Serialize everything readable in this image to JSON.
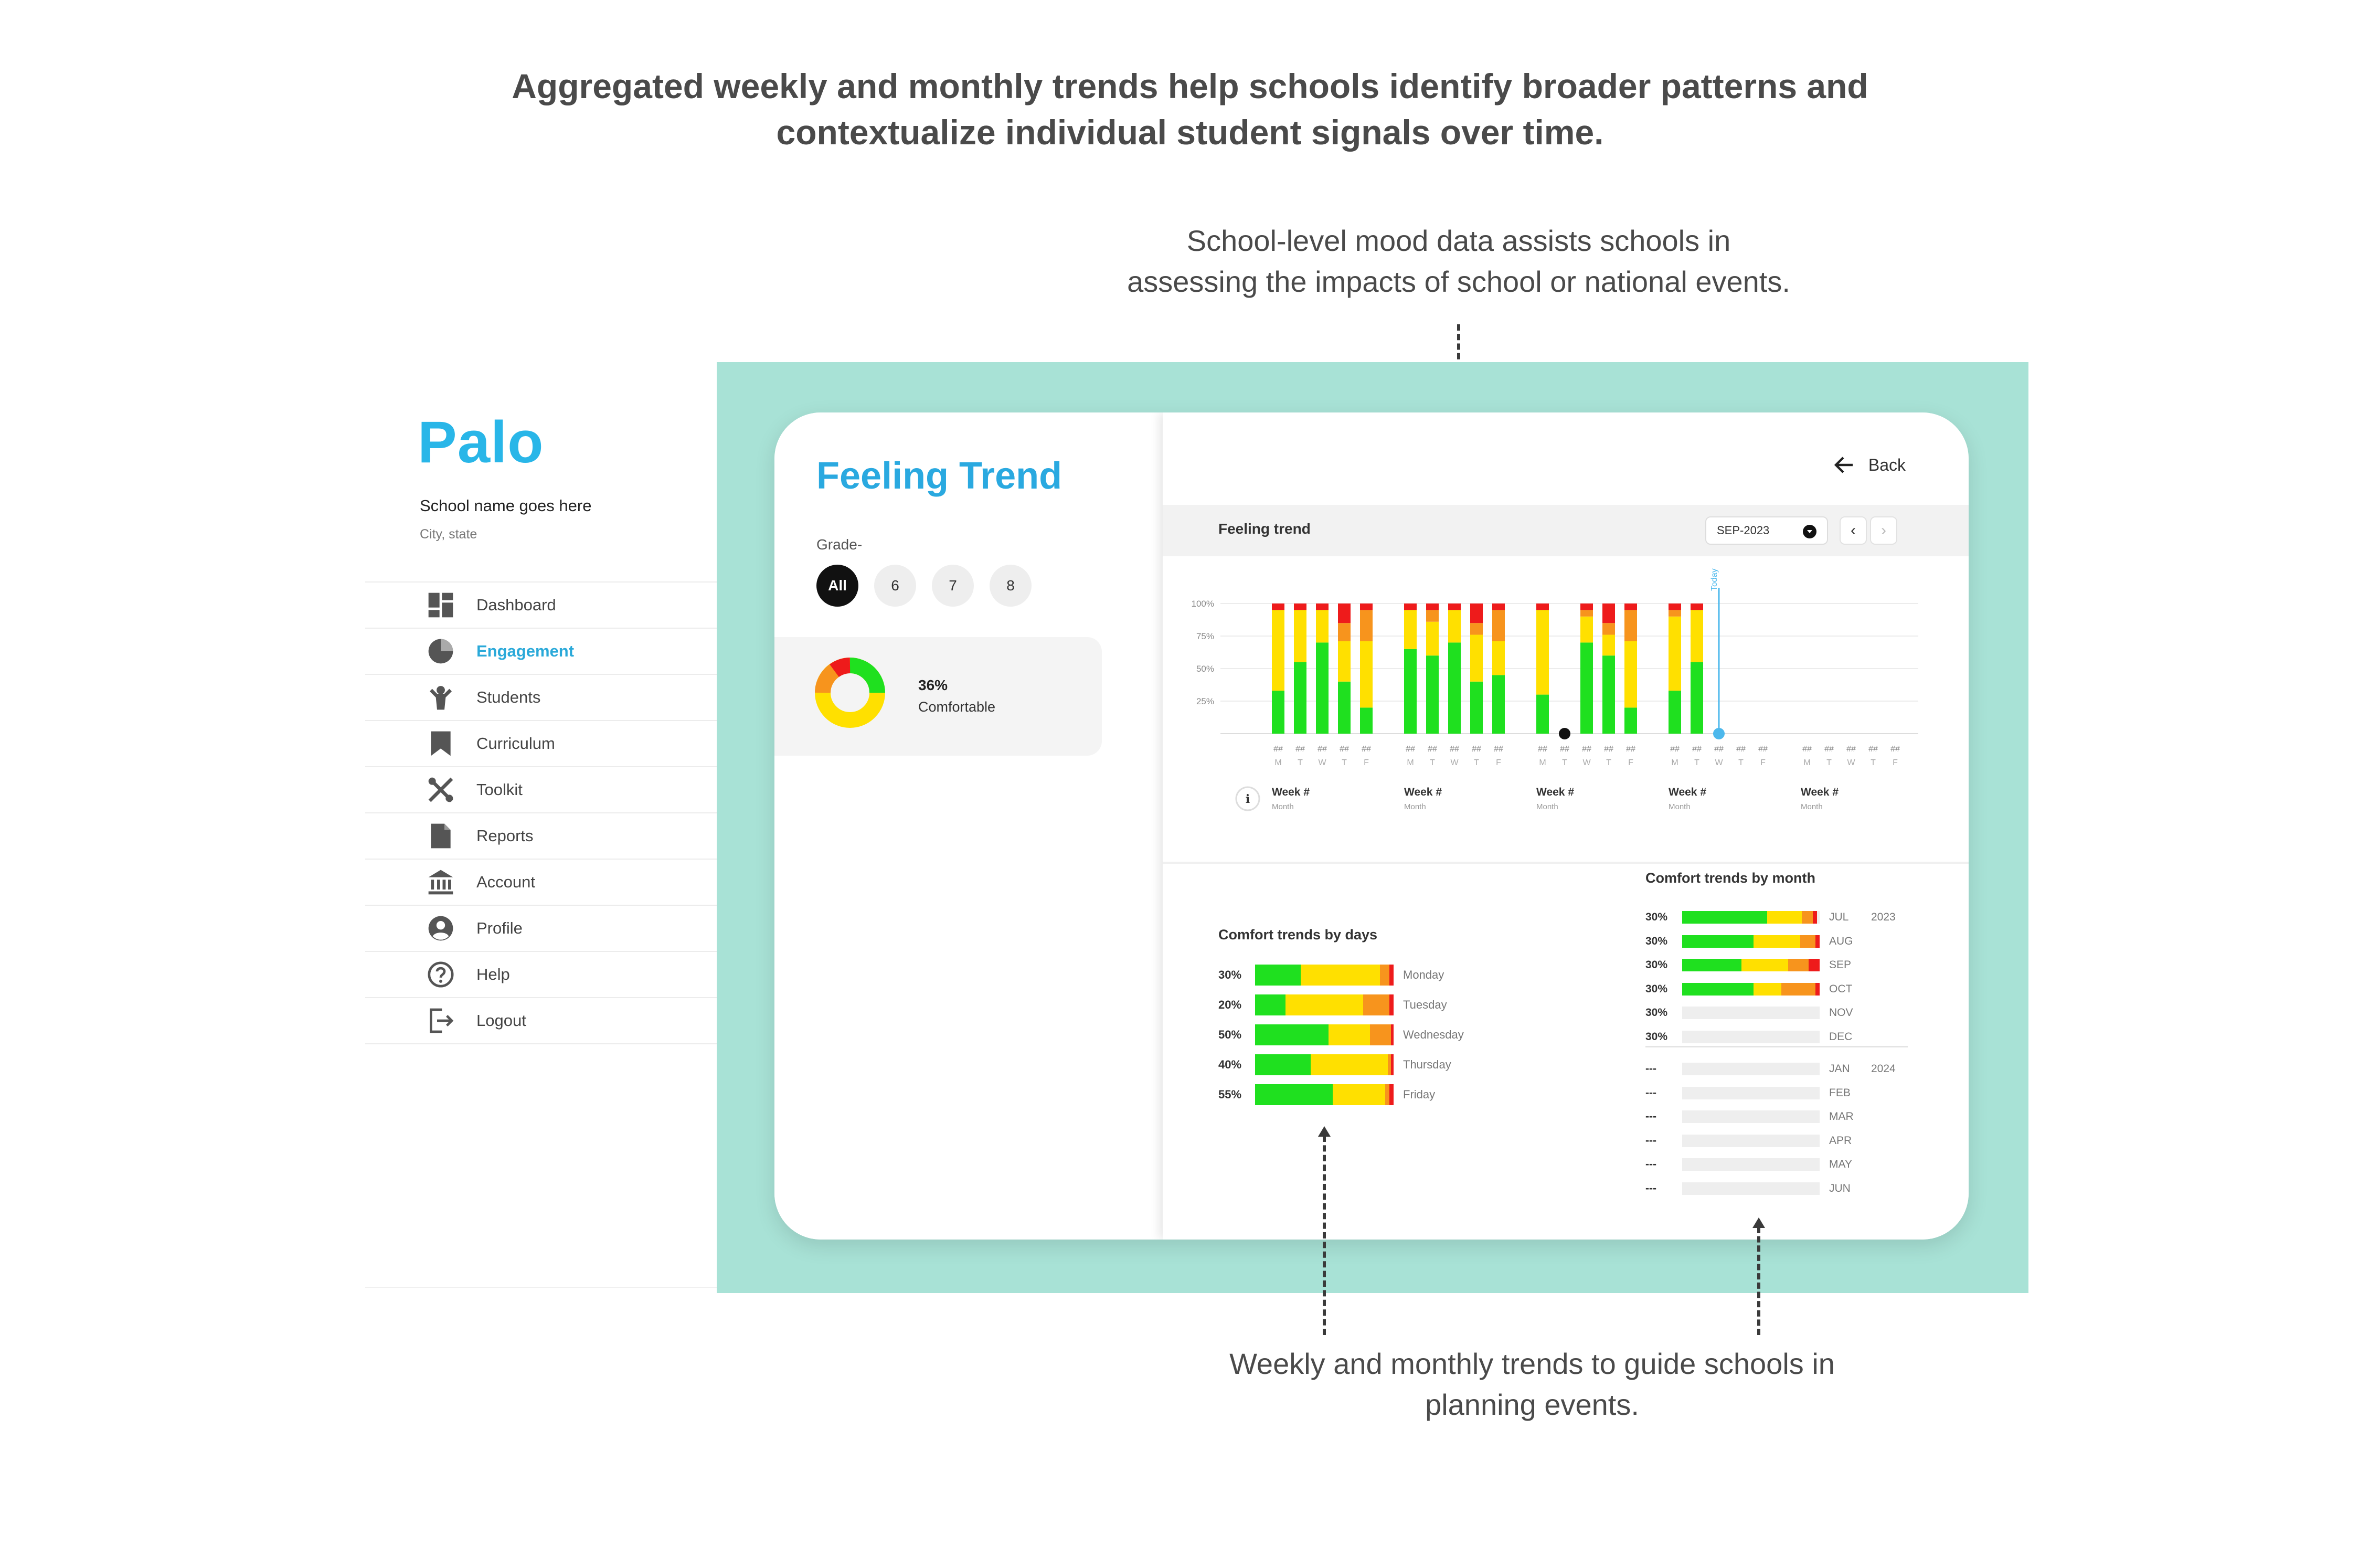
{
  "headline": {
    "line1": "Aggregated weekly and monthly trends help schools identify broader patterns and",
    "line2": "contextualize individual student signals over time."
  },
  "annotation_top": {
    "line1": "School-level mood data assists schools in",
    "line2": "assessing the impacts of school or national events."
  },
  "annotation_bottom": {
    "line1": "Weekly and monthly trends to guide schools in",
    "line2": "planning events."
  },
  "sidebar": {
    "logo": "Palo",
    "school_name": "School name goes here",
    "city": "City, state",
    "items": [
      {
        "label": "Dashboard",
        "icon": "dashboard-icon",
        "active": false
      },
      {
        "label": "Engagement",
        "icon": "pie-chart-icon",
        "active": true
      },
      {
        "label": "Students",
        "icon": "student-icon",
        "active": false
      },
      {
        "label": "Curriculum",
        "icon": "bookmark-icon",
        "active": false
      },
      {
        "label": "Toolkit",
        "icon": "tools-icon",
        "active": false
      },
      {
        "label": "Reports",
        "icon": "document-icon",
        "active": false
      },
      {
        "label": "Account",
        "icon": "bank-icon",
        "active": false
      },
      {
        "label": "Profile",
        "icon": "profile-icon",
        "active": false
      },
      {
        "label": "Help",
        "icon": "help-icon",
        "active": false
      },
      {
        "label": "Logout",
        "icon": "logout-icon",
        "active": false
      }
    ]
  },
  "colors": {
    "teal_frame": "#a8e2d6",
    "accent_blue": "#2aa9e0",
    "green": "#1fe01f",
    "yellow": "#ffe000",
    "orange": "#f7941d",
    "red": "#ee1b1b",
    "today_line": "#4db8ec"
  },
  "feeling_panel": {
    "title": "Feeling Trend",
    "grade_label": "Grade-",
    "grades": [
      "All",
      "6",
      "7",
      "8"
    ],
    "selected_grade": "All",
    "mood_percent": "36%",
    "mood_label": "Comfortable"
  },
  "right_panel": {
    "back_label": "Back",
    "section_title": "Feeling trend",
    "month_select": "SEP-2023",
    "prev_label": "‹",
    "next_label": "›"
  },
  "chart_data": [
    {
      "type": "bar",
      "stacked": true,
      "title": "Feeling trend",
      "y_ticks": [
        "100%",
        "75%",
        "50%",
        "25%"
      ],
      "ylim": [
        0,
        100
      ],
      "today_label": "Today",
      "day_labels": [
        "M",
        "T",
        "W",
        "T",
        "F"
      ],
      "bar_value_label": "##",
      "weeks": [
        {
          "label": "Week #",
          "sublabel": "Month",
          "days": [
            {
              "green": 33,
              "yellow": 62,
              "orange": 0,
              "red": 5
            },
            {
              "green": 55,
              "yellow": 40,
              "orange": 0,
              "red": 5
            },
            {
              "green": 70,
              "yellow": 25,
              "orange": 0,
              "red": 5
            },
            {
              "green": 40,
              "yellow": 31,
              "orange": 14,
              "red": 15
            },
            {
              "green": 20,
              "yellow": 51,
              "orange": 24,
              "red": 5
            }
          ]
        },
        {
          "label": "Week #",
          "sublabel": "Month",
          "days": [
            {
              "green": 65,
              "yellow": 30,
              "orange": 0,
              "red": 5
            },
            {
              "green": 60,
              "yellow": 26,
              "orange": 9,
              "red": 5
            },
            {
              "green": 70,
              "yellow": 25,
              "orange": 0,
              "red": 5
            },
            {
              "green": 40,
              "yellow": 36,
              "orange": 9,
              "red": 15
            },
            {
              "green": 45,
              "yellow": 26,
              "orange": 24,
              "red": 5
            }
          ]
        },
        {
          "label": "Week #",
          "sublabel": "Month",
          "days": [
            {
              "green": 30,
              "yellow": 65,
              "orange": 0,
              "red": 5
            },
            {
              "green": 0,
              "yellow": 0,
              "orange": 0,
              "red": 0,
              "marker": true
            },
            {
              "green": 70,
              "yellow": 20,
              "orange": 5,
              "red": 5
            },
            {
              "green": 60,
              "yellow": 16,
              "orange": 9,
              "red": 15
            },
            {
              "green": 20,
              "yellow": 51,
              "orange": 24,
              "red": 5
            }
          ]
        },
        {
          "label": "Week #",
          "sublabel": "Month",
          "days": [
            {
              "green": 33,
              "yellow": 57,
              "orange": 5,
              "red": 5
            },
            {
              "green": 55,
              "yellow": 40,
              "orange": 0,
              "red": 5
            },
            {
              "green": 0,
              "yellow": 0,
              "orange": 0,
              "red": 0,
              "today": true
            },
            {
              "green": 0,
              "yellow": 0,
              "orange": 0,
              "red": 0
            },
            {
              "green": 0,
              "yellow": 0,
              "orange": 0,
              "red": 0
            }
          ]
        },
        {
          "label": "Week #",
          "sublabel": "Month",
          "days": [
            {
              "green": 0,
              "yellow": 0,
              "orange": 0,
              "red": 0
            },
            {
              "green": 0,
              "yellow": 0,
              "orange": 0,
              "red": 0
            },
            {
              "green": 0,
              "yellow": 0,
              "orange": 0,
              "red": 0
            },
            {
              "green": 0,
              "yellow": 0,
              "orange": 0,
              "red": 0
            },
            {
              "green": 0,
              "yellow": 0,
              "orange": 0,
              "red": 0
            }
          ]
        }
      ]
    },
    {
      "type": "bar",
      "stacked": true,
      "orientation": "horizontal",
      "title": "Comfort trends by days",
      "rows": [
        {
          "pct": "30%",
          "day": "Monday",
          "green": 33,
          "yellow": 57,
          "orange": 7,
          "red": 3
        },
        {
          "pct": "20%",
          "day": "Tuesday",
          "green": 22,
          "yellow": 56,
          "orange": 19,
          "red": 3
        },
        {
          "pct": "50%",
          "day": "Wednesday",
          "green": 53,
          "yellow": 30,
          "orange": 15,
          "red": 2
        },
        {
          "pct": "40%",
          "day": "Thursday",
          "green": 40,
          "yellow": 56,
          "orange": 2,
          "red": 2
        },
        {
          "pct": "55%",
          "day": "Friday",
          "green": 56,
          "yellow": 38,
          "orange": 3,
          "red": 3
        }
      ]
    },
    {
      "type": "bar",
      "stacked": true,
      "orientation": "horizontal",
      "title": "Comfort trends by month",
      "groups": [
        {
          "year": "2023",
          "rows": [
            {
              "pct": "30%",
              "month": "JUL",
              "green": 62,
              "yellow": 25,
              "orange": 8,
              "red": 3
            },
            {
              "pct": "30%",
              "month": "AUG",
              "green": 52,
              "yellow": 34,
              "orange": 11,
              "red": 3
            },
            {
              "pct": "30%",
              "month": "SEP",
              "green": 43,
              "yellow": 34,
              "orange": 15,
              "red": 8
            },
            {
              "pct": "30%",
              "month": "OCT",
              "green": 52,
              "yellow": 20,
              "orange": 25,
              "red": 3
            },
            {
              "pct": "30%",
              "month": "NOV",
              "green": 0,
              "yellow": 0,
              "orange": 0,
              "red": 0
            },
            {
              "pct": "30%",
              "month": "DEC",
              "green": 0,
              "yellow": 0,
              "orange": 0,
              "red": 0
            }
          ]
        },
        {
          "year": "2024",
          "rows": [
            {
              "pct": "---",
              "month": "JAN",
              "green": 0,
              "yellow": 0,
              "orange": 0,
              "red": 0
            },
            {
              "pct": "---",
              "month": "FEB",
              "green": 0,
              "yellow": 0,
              "orange": 0,
              "red": 0
            },
            {
              "pct": "---",
              "month": "MAR",
              "green": 0,
              "yellow": 0,
              "orange": 0,
              "red": 0
            },
            {
              "pct": "---",
              "month": "APR",
              "green": 0,
              "yellow": 0,
              "orange": 0,
              "red": 0
            },
            {
              "pct": "---",
              "month": "MAY",
              "green": 0,
              "yellow": 0,
              "orange": 0,
              "red": 0
            },
            {
              "pct": "---",
              "month": "JUN",
              "green": 0,
              "yellow": 0,
              "orange": 0,
              "red": 0
            }
          ]
        }
      ]
    }
  ]
}
